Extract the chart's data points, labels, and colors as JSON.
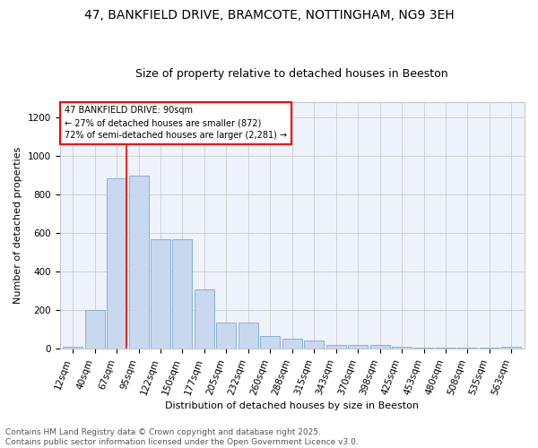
{
  "title1": "47, BANKFIELD DRIVE, BRAMCOTE, NOTTINGHAM, NG9 3EH",
  "title2": "Size of property relative to detached houses in Beeston",
  "xlabel": "Distribution of detached houses by size in Beeston",
  "ylabel": "Number of detached properties",
  "categories": [
    "12sqm",
    "40sqm",
    "67sqm",
    "95sqm",
    "122sqm",
    "150sqm",
    "177sqm",
    "205sqm",
    "232sqm",
    "260sqm",
    "288sqm",
    "315sqm",
    "343sqm",
    "370sqm",
    "398sqm",
    "425sqm",
    "453sqm",
    "480sqm",
    "508sqm",
    "535sqm",
    "563sqm"
  ],
  "values": [
    12,
    202,
    885,
    900,
    570,
    570,
    310,
    135,
    135,
    65,
    50,
    45,
    18,
    18,
    18,
    12,
    5,
    5,
    5,
    5,
    12
  ],
  "bar_color": "#c8d8ee",
  "bar_edge_color": "#7aaad0",
  "vline_color": "red",
  "annotation_text": "47 BANKFIELD DRIVE: 90sqm\n← 27% of detached houses are smaller (872)\n72% of semi-detached houses are larger (2,281) →",
  "annotation_box_color": "white",
  "annotation_box_edge": "red",
  "ylim": [
    0,
    1280
  ],
  "yticks": [
    0,
    200,
    400,
    600,
    800,
    1000,
    1200
  ],
  "grid_color": "#cccccc",
  "bg_color": "#eef2fb",
  "footer": "Contains HM Land Registry data © Crown copyright and database right 2025.\nContains public sector information licensed under the Open Government Licence v3.0.",
  "title_fontsize": 10,
  "subtitle_fontsize": 9,
  "axis_label_fontsize": 8,
  "tick_fontsize": 7.5,
  "footer_fontsize": 6.5
}
